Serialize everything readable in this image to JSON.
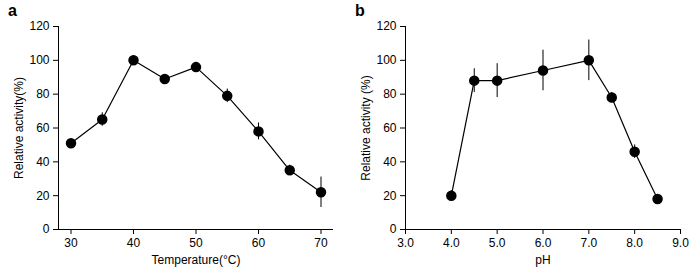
{
  "chart_data": [
    {
      "type": "line",
      "title": "a",
      "x_label": "Temperature(°C)",
      "y_label": "Relative activity(%)",
      "x": [
        30,
        35,
        40,
        45,
        50,
        55,
        60,
        65,
        70
      ],
      "series": [
        {
          "name": "Relative activity",
          "color": "#000000",
          "marker": "circle",
          "line_style": "solid",
          "values": [
            51,
            65,
            100,
            89,
            96,
            79,
            58,
            35,
            22
          ],
          "error": [
            1,
            4,
            2,
            1,
            2,
            4,
            5,
            3,
            9
          ]
        }
      ],
      "xlim": [
        28,
        72
      ],
      "xticks": [
        30,
        40,
        50,
        60,
        70
      ],
      "ylim": [
        0,
        120
      ],
      "yticks": [
        0,
        20,
        40,
        60,
        80,
        100,
        120
      ],
      "grid": false
    },
    {
      "type": "line",
      "title": "b",
      "x_label": "pH",
      "y_label": "Relative activity (%)",
      "x": [
        4,
        4.5,
        5,
        6,
        7,
        7.5,
        8,
        8.5
      ],
      "series": [
        {
          "name": "Relative activity",
          "color": "#000000",
          "marker": "circle",
          "line_style": "solid",
          "values": [
            20,
            88,
            88,
            94,
            100,
            78,
            46,
            18
          ],
          "error": [
            3,
            7,
            10,
            12,
            12,
            3,
            4,
            1
          ]
        }
      ],
      "xlim": [
        3,
        9
      ],
      "xticks": [
        3,
        4,
        5,
        6,
        7,
        8,
        9
      ],
      "ylim": [
        0,
        120
      ],
      "yticks": [
        0,
        20,
        40,
        60,
        80,
        100,
        120
      ],
      "grid": false
    }
  ]
}
